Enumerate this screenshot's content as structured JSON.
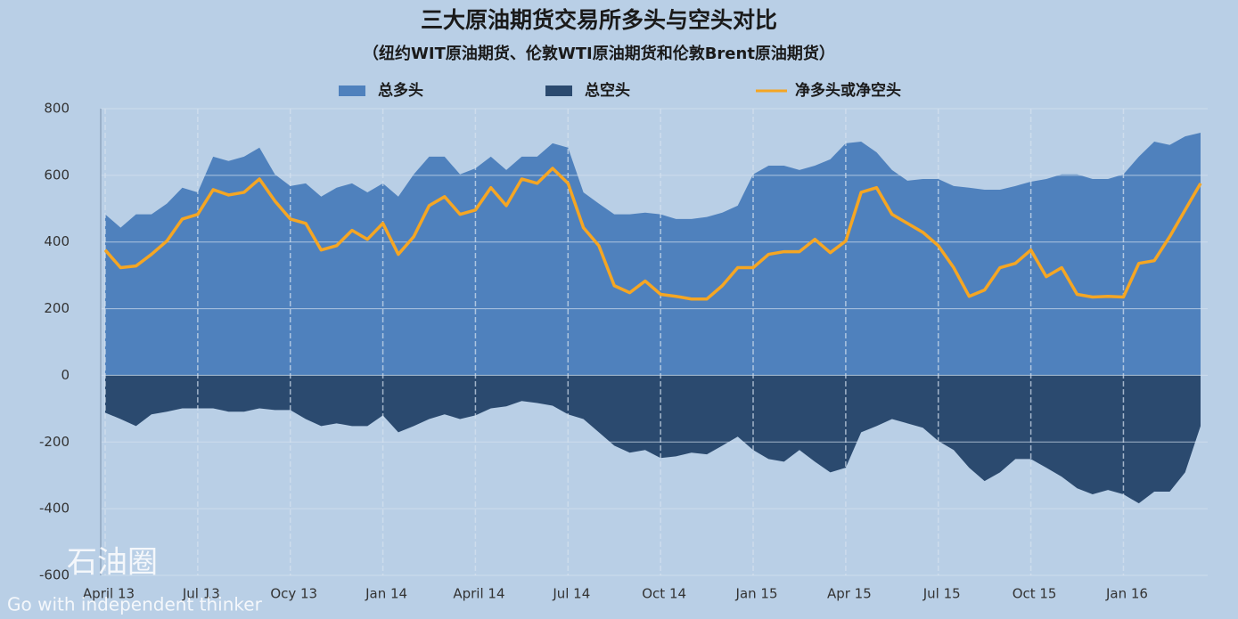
{
  "chart_data": {
    "type": "area",
    "title": "三大原油期货交易所多头与空头对比",
    "subtitle": "（纽约WIT原油期货、伦敦WTI原油期货和伦敦Brent原油期货）",
    "categories": [
      "April 13",
      null,
      null,
      null,
      null,
      null,
      "Jul 13",
      null,
      null,
      null,
      null,
      null,
      "Ocy 13",
      null,
      null,
      null,
      null,
      null,
      "Jan 14",
      null,
      null,
      null,
      null,
      null,
      "April 14",
      null,
      null,
      null,
      null,
      null,
      "Jul 14",
      null,
      null,
      null,
      null,
      null,
      "Oct 14",
      null,
      null,
      null,
      null,
      null,
      "Jan 15",
      null,
      null,
      null,
      null,
      null,
      "Apr 15",
      null,
      null,
      null,
      null,
      null,
      "Jul 15",
      null,
      null,
      null,
      null,
      null,
      "Oct 15",
      null,
      null,
      null,
      null,
      null,
      "Jan 16",
      null,
      null,
      null,
      null,
      null
    ],
    "series": [
      {
        "name": "总多头",
        "color": "#4f81bd",
        "kind": "area",
        "values": [
          483,
          443,
          483,
          483,
          515,
          563,
          549,
          656,
          643,
          656,
          683,
          603,
          568,
          576,
          536,
          563,
          576,
          549,
          576,
          536,
          603,
          656,
          656,
          603,
          621,
          656,
          616,
          656,
          656,
          696,
          683,
          549,
          515,
          483,
          483,
          488,
          483,
          469,
          469,
          475,
          488,
          509,
          603,
          629,
          629,
          616,
          629,
          648,
          696,
          701,
          669,
          616,
          584,
          589,
          589,
          568,
          563,
          557,
          557,
          568,
          581,
          589,
          603,
          603,
          589,
          589,
          603,
          656,
          701,
          691,
          717,
          728
        ]
      },
      {
        "name": "总空头",
        "color": "#2b4a6f",
        "kind": "area",
        "values": [
          -112,
          -131,
          -152,
          -117,
          -109,
          -99,
          -99,
          -99,
          -109,
          -109,
          -99,
          -104,
          -104,
          -131,
          -152,
          -144,
          -152,
          -152,
          -120,
          -171,
          -152,
          -131,
          -117,
          -131,
          -120,
          -99,
          -93,
          -77,
          -83,
          -91,
          -117,
          -131,
          -171,
          -211,
          -232,
          -224,
          -248,
          -243,
          -232,
          -237,
          -211,
          -184,
          -224,
          -251,
          -259,
          -224,
          -259,
          -291,
          -277,
          -171,
          -152,
          -131,
          -144,
          -157,
          -197,
          -224,
          -277,
          -317,
          -291,
          -251,
          -251,
          -277,
          -304,
          -339,
          -357,
          -344,
          -357,
          -384,
          -349,
          -349,
          -291,
          -152
        ]
      },
      {
        "name": "净多头或净空头",
        "color": "#f5a623",
        "kind": "line",
        "values": [
          376,
          323,
          328,
          363,
          403,
          469,
          483,
          557,
          541,
          549,
          589,
          523,
          469,
          456,
          376,
          389,
          435,
          408,
          456,
          363,
          416,
          509,
          536,
          483,
          496,
          563,
          509,
          589,
          576,
          621,
          576,
          443,
          389,
          269,
          248,
          283,
          243,
          237,
          229,
          229,
          269,
          323,
          323,
          363,
          371,
          371,
          408,
          368,
          403,
          549,
          563,
          483,
          456,
          429,
          389,
          323,
          237,
          256,
          323,
          336,
          376,
          296,
          323,
          243,
          235,
          237,
          235,
          336,
          344,
          416,
          496,
          576
        ]
      }
    ],
    "ylim": [
      -600,
      800
    ],
    "yticks": [
      -600,
      -400,
      -200,
      0,
      200,
      400,
      600,
      800
    ],
    "grid": true,
    "legend": "top"
  },
  "watermark": {
    "logo": "石油圈",
    "tagline": "Go with independent thinker"
  }
}
